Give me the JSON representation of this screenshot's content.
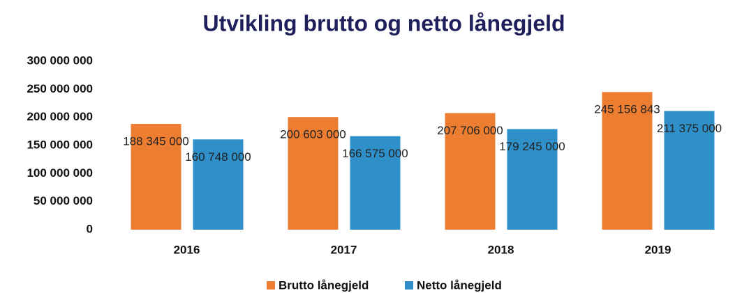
{
  "chart_data": {
    "type": "bar",
    "title": "Utvikling brutto og netto lånegjeld",
    "categories": [
      "2016",
      "2017",
      "2018",
      "2019"
    ],
    "series": [
      {
        "name": "Brutto lånegjeld",
        "color": "#ed7d31",
        "values": [
          188345000,
          200603000,
          207706000,
          245156843
        ],
        "value_labels": [
          "188 345 000",
          "200 603 000",
          "207 706 000",
          "245 156 843"
        ]
      },
      {
        "name": "Netto lånegjeld",
        "color": "#2e8fc9",
        "values": [
          160748000,
          166575000,
          179245000,
          211375000
        ],
        "value_labels": [
          "160 748 000",
          "166 575 000",
          "179 245 000",
          "211 375 000"
        ]
      }
    ],
    "ylim": [
      0,
      300000000
    ],
    "yticks": [
      0,
      {
        "value": 50000000,
        "label": "50 000 000"
      },
      {
        "value": 100000000,
        "label": "100 000 000"
      },
      {
        "value": 150000000,
        "label": "150 000 000"
      },
      {
        "value": 200000000,
        "label": "200 000 000"
      },
      {
        "value": 250000000,
        "label": "250 000 000"
      },
      {
        "value": 300000000,
        "label": "300 000 000"
      }
    ],
    "grid": false,
    "legend": "bottom"
  }
}
